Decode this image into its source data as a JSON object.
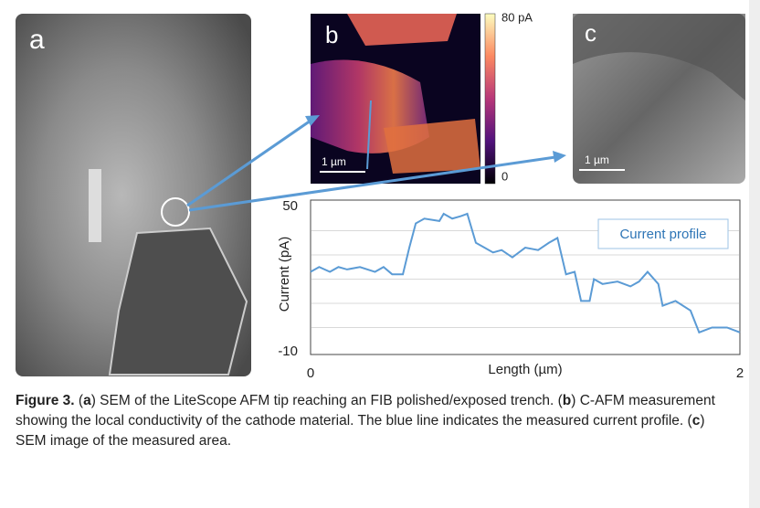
{
  "panels": [
    {
      "label": "a"
    },
    {
      "label": "b",
      "scale_bar": "1 µm",
      "colorbar_max": "80 pA",
      "colorbar_min": "0"
    },
    {
      "label": "c",
      "scale_bar": "1 µm"
    }
  ],
  "chart_data": {
    "type": "line",
    "xlabel": "Length (µm)",
    "ylabel": "Current (pA)",
    "xlim": [
      0,
      2
    ],
    "ylim": [
      -10,
      50
    ],
    "xticks": [
      0,
      2
    ],
    "yticks": [
      -10,
      50
    ],
    "gridlines": [
      0,
      10,
      20,
      30,
      40
    ],
    "legend": "upper right",
    "x": [
      0,
      0.04,
      0.09,
      0.13,
      0.17,
      0.23,
      0.3,
      0.34,
      0.38,
      0.43,
      0.46,
      0.49,
      0.53,
      0.6,
      0.62,
      0.66,
      0.7,
      0.73,
      0.77,
      0.81,
      0.85,
      0.89,
      0.94,
      1.0,
      1.06,
      1.11,
      1.15,
      1.19,
      1.23,
      1.26,
      1.3,
      1.32,
      1.36,
      1.43,
      1.49,
      1.53,
      1.57,
      1.62,
      1.64,
      1.7,
      1.77,
      1.81,
      1.87,
      1.94,
      2.0
    ],
    "series": [
      {
        "name": "Current profile",
        "color": "#5b9bd5",
        "values": [
          23,
          25,
          23,
          25,
          24,
          25,
          23,
          25,
          22,
          22,
          33,
          43,
          45,
          44,
          47,
          45,
          46,
          47,
          35,
          33,
          31,
          32,
          29,
          33,
          32,
          35,
          37,
          22,
          23,
          11,
          11,
          20,
          18,
          19,
          17,
          19,
          23,
          18,
          9,
          11,
          7,
          -2,
          0,
          0,
          -2
        ]
      }
    ]
  },
  "caption": [
    {
      "text": "Figure 3.",
      "bold": true
    },
    {
      "text": " (",
      "bold": false
    },
    {
      "text": "a",
      "bold": true
    },
    {
      "text": ") SEM of the LiteScope AFM tip reaching an FIB polished/exposed trench. (",
      "bold": false
    },
    {
      "text": "b",
      "bold": true
    },
    {
      "text": ") C-AFM measurement showing the local conductivity of the cathode material. The blue line indicates the measured current profile. (",
      "bold": false
    },
    {
      "text": "c",
      "bold": true
    },
    {
      "text": ") SEM image of the measured area.",
      "bold": false
    }
  ]
}
